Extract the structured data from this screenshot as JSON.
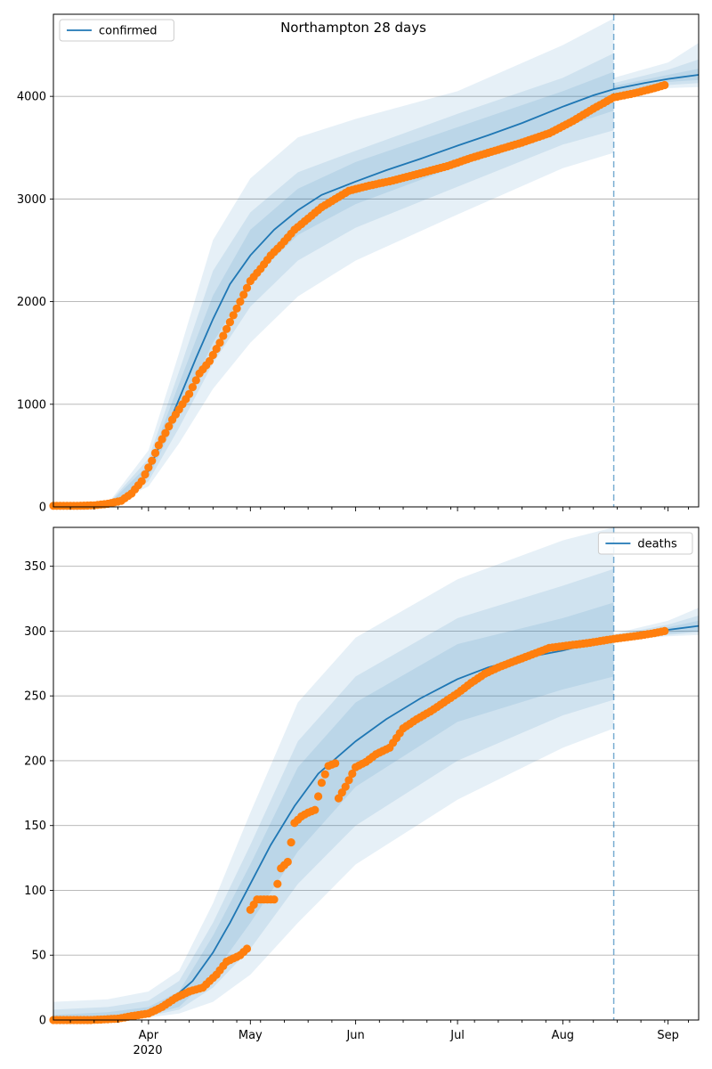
{
  "title": "Northampton 28 days",
  "colors": {
    "model": "#1f77b4",
    "observed": "#ff7f0e",
    "band": "#1f77b4",
    "grid": "#b0b0b0"
  },
  "x_axis": {
    "month_ticks": [
      {
        "date": "2020-04-01",
        "label": "Apr"
      },
      {
        "date": "2020-05-01",
        "label": "May"
      },
      {
        "date": "2020-06-01",
        "label": "Jun"
      },
      {
        "date": "2020-07-01",
        "label": "Jul"
      },
      {
        "date": "2020-08-01",
        "label": "Aug"
      },
      {
        "date": "2020-09-01",
        "label": "Sep"
      }
    ],
    "year_label": "2020",
    "range": [
      "2020-03-04",
      "2020-09-10"
    ],
    "forecast_start": "2020-08-16"
  },
  "chart_data": [
    {
      "type": "line",
      "title": "Northampton 28 days",
      "legend": {
        "label": "confirmed",
        "position": "upper-left"
      },
      "ylim": [
        0,
        4800
      ],
      "yticks": [
        "0",
        "1000",
        "2000",
        "3000",
        "4000"
      ],
      "grid": "horizontal",
      "model": [
        [
          "2020-03-04",
          0
        ],
        [
          "2020-03-15",
          0
        ],
        [
          "2020-03-20",
          15
        ],
        [
          "2020-03-25",
          60
        ],
        [
          "2020-03-28",
          150
        ],
        [
          "2020-04-01",
          350
        ],
        [
          "2020-04-05",
          650
        ],
        [
          "2020-04-10",
          1050
        ],
        [
          "2020-04-15",
          1450
        ],
        [
          "2020-04-20",
          1830
        ],
        [
          "2020-04-25",
          2170
        ],
        [
          "2020-05-01",
          2450
        ],
        [
          "2020-05-08",
          2700
        ],
        [
          "2020-05-15",
          2890
        ],
        [
          "2020-05-22",
          3040
        ],
        [
          "2020-06-01",
          3170
        ],
        [
          "2020-06-10",
          3280
        ],
        [
          "2020-06-20",
          3390
        ],
        [
          "2020-07-01",
          3520
        ],
        [
          "2020-07-10",
          3620
        ],
        [
          "2020-07-20",
          3740
        ],
        [
          "2020-08-01",
          3900
        ],
        [
          "2020-08-10",
          4010
        ],
        [
          "2020-08-16",
          4070
        ],
        [
          "2020-08-25",
          4130
        ],
        [
          "2020-09-01",
          4170
        ],
        [
          "2020-09-10",
          4210
        ]
      ],
      "bands": [
        [
          [
            "2020-03-04",
            0,
            0
          ],
          [
            "2020-03-20",
            5,
            30
          ],
          [
            "2020-04-01",
            200,
            550
          ],
          [
            "2020-04-10",
            620,
            1500
          ],
          [
            "2020-04-20",
            1150,
            2600
          ],
          [
            "2020-05-01",
            1600,
            3200
          ],
          [
            "2020-05-15",
            2050,
            3600
          ],
          [
            "2020-06-01",
            2400,
            3780
          ],
          [
            "2020-07-01",
            2850,
            4050
          ],
          [
            "2020-08-01",
            3300,
            4500
          ],
          [
            "2020-08-16",
            3450,
            4760
          ],
          [
            "2020-08-16",
            3960,
            4180
          ],
          [
            "2020-09-01",
            4080,
            4330
          ],
          [
            "2020-09-10",
            4090,
            4520
          ]
        ],
        [
          [
            "2020-03-04",
            0,
            0
          ],
          [
            "2020-03-20",
            8,
            25
          ],
          [
            "2020-04-01",
            250,
            470
          ],
          [
            "2020-04-10",
            770,
            1320
          ],
          [
            "2020-04-20",
            1400,
            2300
          ],
          [
            "2020-05-01",
            1950,
            2870
          ],
          [
            "2020-05-15",
            2400,
            3260
          ],
          [
            "2020-06-01",
            2720,
            3470
          ],
          [
            "2020-07-01",
            3120,
            3830
          ],
          [
            "2020-08-01",
            3530,
            4180
          ],
          [
            "2020-08-16",
            3670,
            4420
          ],
          [
            "2020-08-16",
            4000,
            4130
          ],
          [
            "2020-09-01",
            4110,
            4260
          ],
          [
            "2020-09-10",
            4130,
            4360
          ]
        ],
        [
          [
            "2020-03-04",
            0,
            0
          ],
          [
            "2020-03-20",
            10,
            20
          ],
          [
            "2020-04-01",
            290,
            410
          ],
          [
            "2020-04-10",
            900,
            1200
          ],
          [
            "2020-04-20",
            1600,
            2060
          ],
          [
            "2020-05-01",
            2200,
            2700
          ],
          [
            "2020-05-15",
            2650,
            3100
          ],
          [
            "2020-06-01",
            2950,
            3360
          ],
          [
            "2020-07-01",
            3320,
            3700
          ],
          [
            "2020-08-01",
            3700,
            4050
          ],
          [
            "2020-08-16",
            3860,
            4240
          ],
          [
            "2020-08-16",
            4030,
            4100
          ],
          [
            "2020-09-01",
            4140,
            4210
          ],
          [
            "2020-09-10",
            4160,
            4270
          ]
        ]
      ],
      "observed": [
        [
          "2020-03-04",
          10
        ],
        [
          "2020-03-10",
          10
        ],
        [
          "2020-03-16",
          15
        ],
        [
          "2020-03-20",
          30
        ],
        [
          "2020-03-24",
          60
        ],
        [
          "2020-03-27",
          130
        ],
        [
          "2020-03-30",
          250
        ],
        [
          "2020-04-02",
          450
        ],
        [
          "2020-04-04",
          600
        ],
        [
          "2020-04-06",
          720
        ],
        [
          "2020-04-08",
          850
        ],
        [
          "2020-04-10",
          950
        ],
        [
          "2020-04-13",
          1100
        ],
        [
          "2020-04-16",
          1300
        ],
        [
          "2020-04-19",
          1420
        ],
        [
          "2020-04-22",
          1600
        ],
        [
          "2020-04-25",
          1800
        ],
        [
          "2020-04-28",
          2000
        ],
        [
          "2020-05-01",
          2200
        ],
        [
          "2020-05-04",
          2320
        ],
        [
          "2020-05-07",
          2450
        ],
        [
          "2020-05-10",
          2550
        ],
        [
          "2020-05-14",
          2700
        ],
        [
          "2020-05-18",
          2810
        ],
        [
          "2020-05-22",
          2920
        ],
        [
          "2020-05-26",
          3000
        ],
        [
          "2020-05-30",
          3080
        ],
        [
          "2020-06-05",
          3130
        ],
        [
          "2020-06-12",
          3180
        ],
        [
          "2020-06-20",
          3250
        ],
        [
          "2020-06-28",
          3320
        ],
        [
          "2020-07-05",
          3400
        ],
        [
          "2020-07-12",
          3470
        ],
        [
          "2020-07-20",
          3550
        ],
        [
          "2020-07-28",
          3640
        ],
        [
          "2020-08-04",
          3760
        ],
        [
          "2020-08-10",
          3880
        ],
        [
          "2020-08-16",
          3990
        ],
        [
          "2020-08-22",
          4030
        ],
        [
          "2020-08-28",
          4080
        ],
        [
          "2020-08-31",
          4110
        ]
      ]
    },
    {
      "type": "line",
      "legend": {
        "label": "deaths",
        "position": "upper-right"
      },
      "ylim": [
        0,
        380
      ],
      "yticks": [
        "0",
        "50",
        "100",
        "150",
        "200",
        "250",
        "300",
        "350"
      ],
      "grid": "horizontal",
      "model": [
        [
          "2020-03-04",
          0
        ],
        [
          "2020-03-15",
          0.5
        ],
        [
          "2020-03-25",
          2
        ],
        [
          "2020-04-01",
          6
        ],
        [
          "2020-04-07",
          14
        ],
        [
          "2020-04-14",
          30
        ],
        [
          "2020-04-20",
          52
        ],
        [
          "2020-04-25",
          75
        ],
        [
          "2020-05-01",
          105
        ],
        [
          "2020-05-07",
          135
        ],
        [
          "2020-05-14",
          165
        ],
        [
          "2020-05-21",
          190
        ],
        [
          "2020-06-01",
          215
        ],
        [
          "2020-06-10",
          232
        ],
        [
          "2020-06-20",
          248
        ],
        [
          "2020-07-01",
          263
        ],
        [
          "2020-07-10",
          272
        ],
        [
          "2020-07-20",
          279
        ],
        [
          "2020-08-01",
          285
        ],
        [
          "2020-08-10",
          291
        ],
        [
          "2020-08-16",
          295
        ],
        [
          "2020-08-25",
          298
        ],
        [
          "2020-09-01",
          301
        ],
        [
          "2020-09-10",
          304
        ]
      ],
      "bands": [
        [
          [
            "2020-03-04",
            0,
            14
          ],
          [
            "2020-03-20",
            0,
            16
          ],
          [
            "2020-04-01",
            2,
            22
          ],
          [
            "2020-04-10",
            5,
            38
          ],
          [
            "2020-04-20",
            14,
            90
          ],
          [
            "2020-05-01",
            35,
            160
          ],
          [
            "2020-05-15",
            75,
            245
          ],
          [
            "2020-06-01",
            120,
            295
          ],
          [
            "2020-07-01",
            170,
            340
          ],
          [
            "2020-08-01",
            210,
            370
          ],
          [
            "2020-08-16",
            225,
            380
          ],
          [
            "2020-08-16",
            293,
            298
          ],
          [
            "2020-09-01",
            296,
            308
          ],
          [
            "2020-09-10",
            297,
            318
          ]
        ],
        [
          [
            "2020-03-04",
            0,
            8
          ],
          [
            "2020-03-20",
            0,
            10
          ],
          [
            "2020-04-01",
            3,
            15
          ],
          [
            "2020-04-10",
            8,
            30
          ],
          [
            "2020-04-20",
            25,
            75
          ],
          [
            "2020-05-01",
            55,
            135
          ],
          [
            "2020-05-15",
            105,
            215
          ],
          [
            "2020-06-01",
            150,
            265
          ],
          [
            "2020-07-01",
            200,
            310
          ],
          [
            "2020-08-01",
            235,
            335
          ],
          [
            "2020-08-16",
            247,
            348
          ],
          [
            "2020-08-16",
            294,
            297
          ],
          [
            "2020-09-01",
            297,
            305
          ],
          [
            "2020-09-10",
            299,
            312
          ]
        ],
        [
          [
            "2020-03-04",
            0,
            4
          ],
          [
            "2020-03-20",
            0,
            6
          ],
          [
            "2020-04-01",
            4,
            10
          ],
          [
            "2020-04-10",
            10,
            22
          ],
          [
            "2020-04-20",
            35,
            65
          ],
          [
            "2020-05-01",
            75,
            120
          ],
          [
            "2020-05-15",
            130,
            195
          ],
          [
            "2020-06-01",
            180,
            245
          ],
          [
            "2020-07-01",
            230,
            290
          ],
          [
            "2020-08-01",
            255,
            310
          ],
          [
            "2020-08-16",
            265,
            322
          ],
          [
            "2020-08-16",
            294,
            296
          ],
          [
            "2020-09-01",
            298,
            303
          ],
          [
            "2020-09-10",
            300,
            308
          ]
        ]
      ],
      "observed": [
        [
          "2020-03-04",
          0
        ],
        [
          "2020-03-15",
          0
        ],
        [
          "2020-03-23",
          1
        ],
        [
          "2020-03-27",
          3
        ],
        [
          "2020-04-01",
          5
        ],
        [
          "2020-04-05",
          10
        ],
        [
          "2020-04-09",
          17
        ],
        [
          "2020-04-13",
          22
        ],
        [
          "2020-04-17",
          25
        ],
        [
          "2020-04-21",
          35
        ],
        [
          "2020-04-24",
          45
        ],
        [
          "2020-04-28",
          50
        ],
        [
          "2020-04-30",
          55
        ],
        [
          "2020-05-01",
          85
        ],
        [
          "2020-05-03",
          93
        ],
        [
          "2020-05-06",
          93
        ],
        [
          "2020-05-08",
          93
        ],
        [
          "2020-05-10",
          117
        ],
        [
          "2020-05-12",
          122
        ],
        [
          "2020-05-14",
          152
        ],
        [
          "2020-05-16",
          157
        ],
        [
          "2020-05-18",
          160
        ],
        [
          "2020-05-20",
          162
        ],
        [
          "2020-05-22",
          183
        ],
        [
          "2020-05-24",
          196
        ],
        [
          "2020-05-26",
          198
        ],
        [
          "2020-05-27",
          171
        ],
        [
          "2020-05-29",
          180
        ],
        [
          "2020-06-01",
          195
        ],
        [
          "2020-06-04",
          199
        ],
        [
          "2020-06-07",
          205
        ],
        [
          "2020-06-11",
          210
        ],
        [
          "2020-06-15",
          225
        ],
        [
          "2020-06-19",
          232
        ],
        [
          "2020-06-23",
          238
        ],
        [
          "2020-06-27",
          245
        ],
        [
          "2020-07-01",
          252
        ],
        [
          "2020-07-05",
          260
        ],
        [
          "2020-07-09",
          267
        ],
        [
          "2020-07-13",
          272
        ],
        [
          "2020-07-18",
          277
        ],
        [
          "2020-07-23",
          282
        ],
        [
          "2020-07-28",
          287
        ],
        [
          "2020-08-03",
          289
        ],
        [
          "2020-08-09",
          291
        ],
        [
          "2020-08-16",
          294
        ],
        [
          "2020-08-22",
          296
        ],
        [
          "2020-08-27",
          298
        ],
        [
          "2020-08-31",
          300
        ]
      ]
    }
  ]
}
